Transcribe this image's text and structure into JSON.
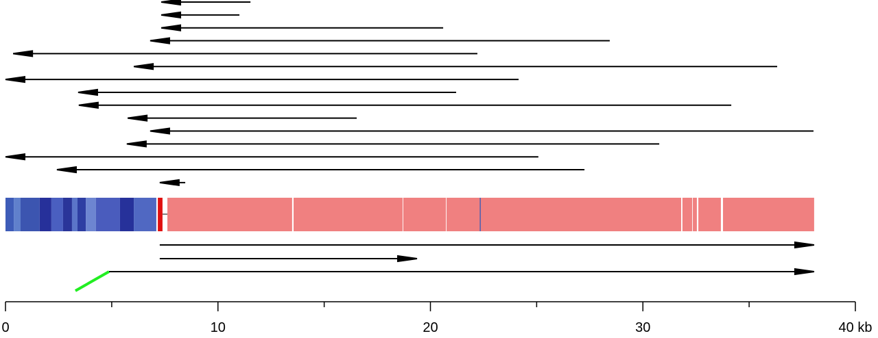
{
  "chart_data": {
    "type": "genome-map",
    "xlim": [
      0,
      40
    ],
    "xticks": [
      0,
      10,
      20,
      30,
      {
        "value": 40,
        "label": "40 kb"
      }
    ],
    "xminorticks": [
      5,
      15,
      25,
      35
    ],
    "reads_above": [
      {
        "from": 11.53,
        "to": 7.33
      },
      {
        "from": 11.01,
        "to": 7.33
      },
      {
        "from": 20.6,
        "to": 7.33
      },
      {
        "from": 28.44,
        "to": 6.81
      },
      {
        "from": 22.21,
        "to": 0.36
      },
      {
        "from": 36.32,
        "to": 6.04
      },
      {
        "from": 24.15,
        "to": 0
      },
      {
        "from": 21.21,
        "to": 3.42
      },
      {
        "from": 34.16,
        "to": 3.45
      },
      {
        "from": 16.53,
        "to": 5.75
      },
      {
        "from": 38.03,
        "to": 6.81
      },
      {
        "from": 30.77,
        "to": 5.71
      },
      {
        "from": 25.08,
        "to": 0
      },
      {
        "from": 27.25,
        "to": 2.42
      },
      {
        "from": 8.46,
        "to": 7.26
      }
    ],
    "reads_below": [
      {
        "from": 7.26,
        "to": 38.06
      },
      {
        "from": 7.26,
        "to": 19.37
      },
      {
        "from": 4.87,
        "to": 38.06
      }
    ],
    "link": {
      "from": 3.29,
      "to": 4.87,
      "color": "#22ee22"
    },
    "track": [
      {
        "start": 0,
        "end": 0.39,
        "color": "#3e5cb8"
      },
      {
        "start": 0.39,
        "end": 0.71,
        "color": "#6080cc"
      },
      {
        "start": 0.71,
        "end": 1.61,
        "color": "#3c55b0"
      },
      {
        "start": 1.61,
        "end": 2.16,
        "color": "#26309a"
      },
      {
        "start": 2.16,
        "end": 2.71,
        "color": "#4a5fc0"
      },
      {
        "start": 2.71,
        "end": 3.13,
        "color": "#2a3599"
      },
      {
        "start": 3.13,
        "end": 3.39,
        "color": "#5b75c9"
      },
      {
        "start": 3.39,
        "end": 3.78,
        "color": "#2e3ea3"
      },
      {
        "start": 3.78,
        "end": 4.26,
        "color": "#6d85d1"
      },
      {
        "start": 4.26,
        "end": 5.39,
        "color": "#4a5cbd"
      },
      {
        "start": 5.39,
        "end": 6.04,
        "color": "#26319a"
      },
      {
        "start": 6.04,
        "end": 7.1,
        "color": "#5068c2"
      },
      {
        "start": 7.17,
        "end": 7.39,
        "color": "#e01010"
      },
      {
        "start": 7.62,
        "end": 13.49,
        "color": "#f08080"
      },
      {
        "start": 13.56,
        "end": 18.69,
        "color": "#f08080"
      },
      {
        "start": 18.72,
        "end": 20.73,
        "color": "#f08080"
      },
      {
        "start": 20.76,
        "end": 31.8,
        "color": "#f08080"
      },
      {
        "start": 31.86,
        "end": 32.32,
        "color": "#f08080"
      },
      {
        "start": 32.35,
        "end": 32.54,
        "color": "#f08080"
      },
      {
        "start": 32.61,
        "end": 33.67,
        "color": "#f08080"
      },
      {
        "start": 33.77,
        "end": 38.06,
        "color": "#f08080"
      },
      {
        "start": 22.32,
        "end": 22.37,
        "color": "#5060b0"
      }
    ]
  }
}
